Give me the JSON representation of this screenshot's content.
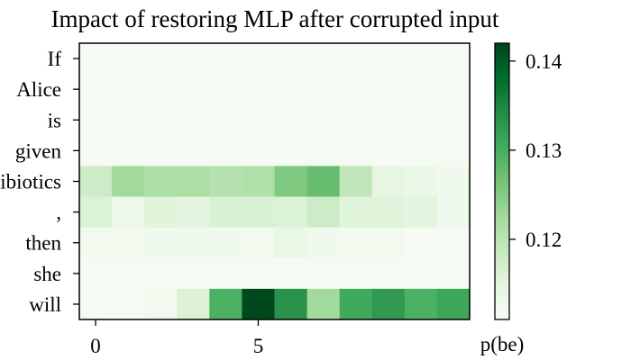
{
  "chart_data": {
    "type": "heatmap",
    "title": "Impact of restoring MLP after corrupted input",
    "y_categories": [
      "If",
      "Alice",
      "is",
      "given",
      "antibiotics",
      ",",
      "then",
      "she",
      "will"
    ],
    "x_ticks": [
      {
        "value": 0,
        "label": "0"
      },
      {
        "value": 5,
        "label": "5"
      }
    ],
    "xlabel": "p(be)",
    "colormap": "Greens",
    "color_range": [
      0.111,
      0.142
    ],
    "colorbar_ticks": [
      {
        "value": 0.12,
        "label": "0.12"
      },
      {
        "value": 0.13,
        "label": "0.13"
      },
      {
        "value": 0.14,
        "label": "0.14"
      }
    ],
    "values": [
      [
        0.1115,
        0.1115,
        0.1115,
        0.1115,
        0.1115,
        0.1115,
        0.1115,
        0.1115,
        0.1115,
        0.1115,
        0.1115,
        0.1115
      ],
      [
        0.1115,
        0.1115,
        0.1115,
        0.1115,
        0.1115,
        0.1115,
        0.1115,
        0.1115,
        0.1115,
        0.1115,
        0.1115,
        0.1115
      ],
      [
        0.1115,
        0.1115,
        0.1115,
        0.1115,
        0.1115,
        0.1115,
        0.1115,
        0.1115,
        0.1115,
        0.1115,
        0.1115,
        0.1115
      ],
      [
        0.1115,
        0.1115,
        0.1115,
        0.1115,
        0.1115,
        0.1115,
        0.1115,
        0.1115,
        0.1115,
        0.1115,
        0.1115,
        0.1115
      ],
      [
        0.118,
        0.1225,
        0.1215,
        0.1215,
        0.1205,
        0.121,
        0.1255,
        0.1275,
        0.1195,
        0.1145,
        0.1135,
        0.1125
      ],
      [
        0.116,
        0.113,
        0.1155,
        0.115,
        0.1165,
        0.1165,
        0.116,
        0.118,
        0.1155,
        0.1155,
        0.115,
        0.1125
      ],
      [
        0.112,
        0.112,
        0.1125,
        0.1125,
        0.1125,
        0.112,
        0.114,
        0.1125,
        0.112,
        0.112,
        0.1115,
        0.1115
      ],
      [
        0.1115,
        0.1115,
        0.1115,
        0.1115,
        0.1115,
        0.1115,
        0.1115,
        0.1115,
        0.1115,
        0.1115,
        0.1115,
        0.1115
      ],
      [
        0.1115,
        0.1115,
        0.112,
        0.116,
        0.1295,
        0.1415,
        0.1335,
        0.1225,
        0.1305,
        0.1325,
        0.1295,
        0.131
      ]
    ]
  }
}
